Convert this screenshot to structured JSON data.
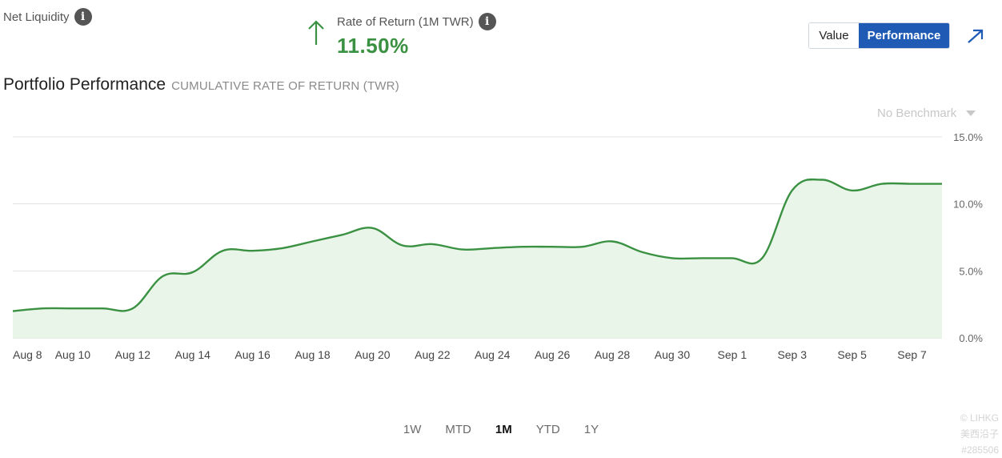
{
  "header": {
    "net_liquidity_label": "Net Liquidity",
    "info_icon_glyph": "i",
    "rate_of_return_label": "Rate of Return (1M TWR)",
    "rate_of_return_value": "11.50%",
    "trend_icon": "arrow-up-icon"
  },
  "view_toggle": {
    "value_label": "Value",
    "performance_label": "Performance",
    "selected": "Performance"
  },
  "expand_icon": "expand-arrow-icon",
  "benchmark": {
    "label": "No Benchmark"
  },
  "range_tabs": [
    {
      "label": "1W",
      "active": false
    },
    {
      "label": "MTD",
      "active": false
    },
    {
      "label": "1M",
      "active": true
    },
    {
      "label": "YTD",
      "active": false
    },
    {
      "label": "1Y",
      "active": false
    }
  ],
  "watermark": {
    "line1": "© LIHKG",
    "line2": "美西沿子 #285506"
  },
  "colors": {
    "line": "#3a9142",
    "area_fill": "#eaf5ea",
    "accent_blue": "#1f5bb5",
    "grid": "#e3e3e3",
    "positive": "#3a9142"
  },
  "chart_data": {
    "type": "area",
    "title": "Portfolio Performance",
    "subtitle": "CUMULATIVE RATE OF RETURN (TWR)",
    "xlabel": "",
    "ylabel": "",
    "ylim": [
      0,
      15
    ],
    "yticks": [
      "0.0%",
      "5.0%",
      "10.0%",
      "15.0%"
    ],
    "ytick_values": [
      0,
      5,
      10,
      15
    ],
    "xticks": [
      "Aug 8",
      "Aug 10",
      "Aug 12",
      "Aug 14",
      "Aug 16",
      "Aug 18",
      "Aug 20",
      "Aug 22",
      "Aug 24",
      "Aug 26",
      "Aug 28",
      "Aug 30",
      "Sep 1",
      "Sep 3",
      "Sep 5",
      "Sep 7"
    ],
    "xtick_dates": [
      "2023-08-08",
      "2023-08-09",
      "2023-08-11",
      "2023-08-13",
      "2023-08-15",
      "2023-08-17",
      "2023-08-19",
      "2023-08-21",
      "2023-08-23",
      "2023-08-25",
      "2023-08-27",
      "2023-08-29",
      "2023-08-31",
      "2023-09-02",
      "2023-09-04",
      "2023-09-06"
    ],
    "grid": true,
    "series": [
      {
        "name": "",
        "x": [
          "2023-08-07",
          "2023-08-08",
          "2023-08-09",
          "2023-08-10",
          "2023-08-11",
          "2023-08-12",
          "2023-08-13",
          "2023-08-14",
          "2023-08-15",
          "2023-08-16",
          "2023-08-17",
          "2023-08-18",
          "2023-08-19",
          "2023-08-20",
          "2023-08-21",
          "2023-08-22",
          "2023-08-23",
          "2023-08-24",
          "2023-08-25",
          "2023-08-26",
          "2023-08-27",
          "2023-08-28",
          "2023-08-29",
          "2023-08-30",
          "2023-08-31",
          "2023-09-01",
          "2023-09-02",
          "2023-09-03",
          "2023-09-04",
          "2023-09-05",
          "2023-09-06",
          "2023-09-07"
        ],
        "values": [
          2.0,
          2.2,
          2.2,
          2.2,
          2.2,
          4.6,
          4.9,
          6.5,
          6.5,
          6.7,
          7.2,
          7.7,
          8.2,
          6.9,
          7.0,
          6.6,
          6.7,
          6.8,
          6.8,
          6.8,
          7.2,
          6.4,
          5.95,
          5.95,
          5.95,
          5.95,
          11.0,
          11.8,
          11.0,
          11.5,
          11.5,
          11.5
        ]
      }
    ]
  }
}
